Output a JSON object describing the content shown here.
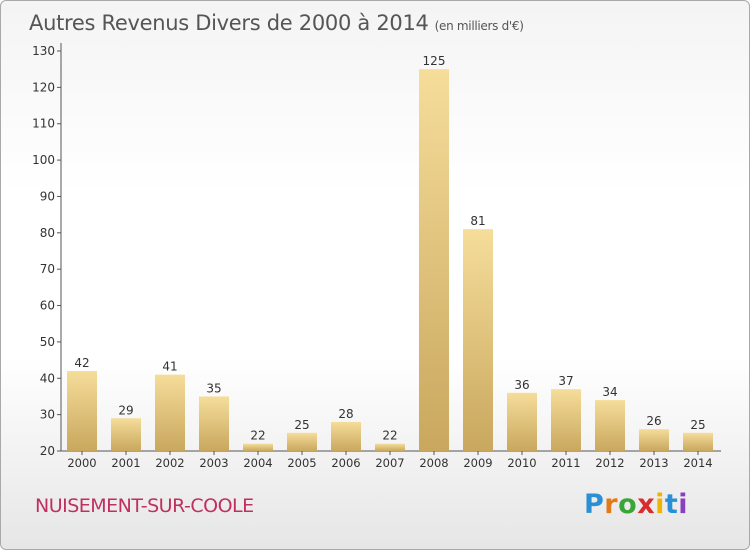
{
  "header": {
    "title": "Autres Revenus Divers de 2000 à 2014",
    "unit": "(en milliers d'€)"
  },
  "footer": {
    "place": "NUISEMENT-SUR-COOLE",
    "logo": "Proxiti"
  },
  "colors": {
    "bar_light": "#f5dd9a",
    "bar_dark": "#c9a75e",
    "axis": "#555555",
    "place_text": "#c0305e"
  },
  "chart_data": {
    "type": "bar",
    "title": "Autres Revenus Divers de 2000 à 2014",
    "subtitle": "(en milliers d'€)",
    "xlabel": "",
    "ylabel": "",
    "categories": [
      "2000",
      "2001",
      "2002",
      "2003",
      "2004",
      "2005",
      "2006",
      "2007",
      "2008",
      "2009",
      "2010",
      "2011",
      "2012",
      "2013",
      "2014"
    ],
    "values": [
      42,
      29,
      41,
      35,
      22,
      25,
      28,
      22,
      125,
      81,
      36,
      37,
      34,
      26,
      25
    ],
    "ylim": [
      20,
      130
    ],
    "yticks": [
      20,
      30,
      40,
      50,
      60,
      70,
      80,
      90,
      100,
      110,
      120,
      130
    ],
    "grid": false,
    "data_labels": true
  }
}
